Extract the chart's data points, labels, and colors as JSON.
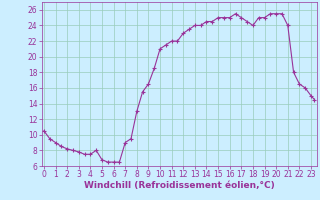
{
  "x": [
    0,
    0.5,
    1,
    1.5,
    2,
    2.5,
    3,
    3.5,
    4,
    4.5,
    5,
    5.5,
    6,
    6.5,
    7,
    7.5,
    8,
    8.5,
    9,
    9.5,
    10,
    10.5,
    11,
    11.5,
    12,
    12.5,
    13,
    13.5,
    14,
    14.5,
    15,
    15.5,
    16,
    16.5,
    17,
    17.5,
    18,
    18.5,
    19,
    19.5,
    20,
    20.5,
    21,
    21.5,
    22,
    22.5,
    23,
    23.3
  ],
  "y": [
    10.5,
    9.5,
    9.0,
    8.5,
    8.2,
    8.0,
    7.8,
    7.5,
    7.5,
    8.0,
    6.8,
    6.5,
    6.5,
    6.5,
    9.0,
    9.5,
    13.0,
    15.5,
    16.5,
    18.5,
    21.0,
    21.5,
    22.0,
    22.0,
    23.0,
    23.5,
    24.0,
    24.0,
    24.5,
    24.5,
    25.0,
    25.0,
    25.0,
    25.5,
    25.0,
    24.5,
    24.0,
    25.0,
    25.0,
    25.5,
    25.5,
    25.5,
    24.0,
    18.0,
    16.5,
    16.0,
    15.0,
    14.5
  ],
  "line_color": "#993399",
  "marker_color": "#993399",
  "bg_color": "#cceeff",
  "grid_color": "#99ccbb",
  "axis_color": "#993399",
  "xlabel": "Windchill (Refroidissement éolien,°C)",
  "ylim": [
    6,
    27
  ],
  "xlim": [
    -0.2,
    23.5
  ],
  "yticks": [
    6,
    8,
    10,
    12,
    14,
    16,
    18,
    20,
    22,
    24,
    26
  ],
  "xticks": [
    0,
    1,
    2,
    3,
    4,
    5,
    6,
    7,
    8,
    9,
    10,
    11,
    12,
    13,
    14,
    15,
    16,
    17,
    18,
    19,
    20,
    21,
    22,
    23
  ],
  "xlabel_fontsize": 6.5,
  "tick_fontsize": 5.5
}
